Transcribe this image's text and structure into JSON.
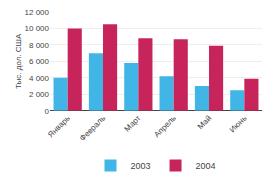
{
  "chart_data": {
    "type": "bar",
    "categories": [
      "Январь",
      "Февраль",
      "Март",
      "Апрель",
      "Май",
      "Июнь"
    ],
    "series": [
      {
        "name": "2003",
        "color": "#41B6E6",
        "values": [
          4000,
          7000,
          5800,
          4200,
          3000,
          2500
        ]
      },
      {
        "name": "2004",
        "color": "#C8245C",
        "values": [
          10000,
          10500,
          8800,
          8700,
          7900,
          3900
        ]
      }
    ],
    "ylabel": "Тыс. дол. США",
    "ylim": [
      0,
      12000
    ],
    "yticks": [
      0,
      {
        "value": 2000,
        "label": "2 000"
      },
      {
        "value": 4000,
        "label": "4 000"
      },
      {
        "value": 6000,
        "label": "6 000"
      },
      {
        "value": 8000,
        "label": "8 000"
      },
      {
        "value": 10000,
        "label": "10 000"
      },
      {
        "value": 12000,
        "label": "12 000"
      }
    ],
    "grid": true,
    "legend": "bottom"
  }
}
